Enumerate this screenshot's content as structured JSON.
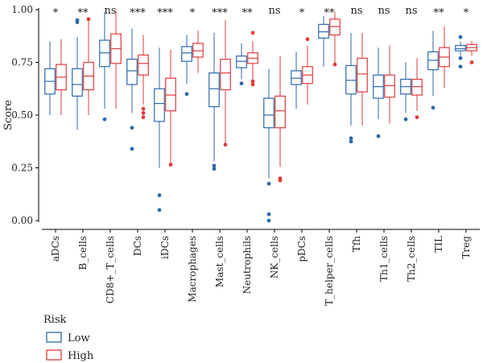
{
  "chart_data": {
    "type": "boxplot",
    "title": "",
    "xlabel": "",
    "ylabel": "Score",
    "ylim": [
      0,
      1
    ],
    "yticks": [
      "0.00",
      "0.25",
      "0.50",
      "0.75",
      "1.00"
    ],
    "ytick_values": [
      0,
      0.25,
      0.5,
      0.75,
      1.0
    ],
    "grid": false,
    "legend": {
      "title": "Risk",
      "position": "bottom-left",
      "entries": [
        {
          "name": "Low",
          "color": "#2c6aab"
        },
        {
          "name": "High",
          "color": "#e23b3b"
        }
      ]
    },
    "categories": [
      "aDCs",
      "B_cells",
      "CD8+_T_cells",
      "DCs",
      "iDCs",
      "Macrophages",
      "Mast_cells",
      "Neutrophils",
      "NK_cells",
      "pDCs",
      "T_helper_cells",
      "Tfh",
      "Th1_cells",
      "Th2_cells",
      "TIL",
      "Treg"
    ],
    "significance": [
      "*",
      "**",
      "ns",
      "***",
      "***",
      "*",
      "***",
      "**",
      "ns",
      "*",
      "**",
      "ns",
      "ns",
      "ns",
      "**",
      "*"
    ],
    "series": [
      {
        "name": "Low",
        "color": "#2c6aab",
        "boxes": [
          {
            "whislo": 0.5,
            "q1": 0.6,
            "med": 0.66,
            "q3": 0.72,
            "whishi": 0.85,
            "fliers": []
          },
          {
            "whislo": 0.43,
            "q1": 0.59,
            "med": 0.645,
            "q3": 0.72,
            "whishi": 0.87,
            "fliers": [
              0.94,
              0.95
            ]
          },
          {
            "whislo": 0.53,
            "q1": 0.73,
            "med": 0.795,
            "q3": 0.855,
            "whishi": 0.99,
            "fliers": [
              0.48
            ]
          },
          {
            "whislo": 0.51,
            "q1": 0.645,
            "med": 0.71,
            "q3": 0.765,
            "whishi": 0.91,
            "fliers": [
              0.44,
              0.34
            ]
          },
          {
            "whislo": 0.25,
            "q1": 0.47,
            "med": 0.555,
            "q3": 0.625,
            "whishi": 0.82,
            "fliers": [
              0.12,
              0.05
            ]
          },
          {
            "whislo": 0.65,
            "q1": 0.755,
            "med": 0.795,
            "q3": 0.825,
            "whishi": 0.88,
            "fliers": [
              0.6
            ]
          },
          {
            "whislo": 0.28,
            "q1": 0.54,
            "med": 0.625,
            "q3": 0.7,
            "whishi": 0.89,
            "fliers": [
              0.26,
              0.245
            ]
          },
          {
            "whislo": 0.67,
            "q1": 0.725,
            "med": 0.755,
            "q3": 0.78,
            "whishi": 0.84,
            "fliers": [
              0.65
            ]
          },
          {
            "whislo": 0.2,
            "q1": 0.44,
            "med": 0.5,
            "q3": 0.58,
            "whishi": 0.72,
            "fliers": [
              0.175,
              0.03,
              0.0
            ]
          },
          {
            "whislo": 0.53,
            "q1": 0.645,
            "med": 0.675,
            "q3": 0.71,
            "whishi": 0.8,
            "fliers": []
          },
          {
            "whislo": 0.73,
            "q1": 0.865,
            "med": 0.895,
            "q3": 0.93,
            "whishi": 0.97,
            "fliers": []
          },
          {
            "whislo": 0.45,
            "q1": 0.6,
            "med": 0.665,
            "q3": 0.735,
            "whishi": 0.89,
            "fliers": [
              0.39,
              0.375
            ]
          },
          {
            "whislo": 0.48,
            "q1": 0.58,
            "med": 0.635,
            "q3": 0.69,
            "whishi": 0.82,
            "fliers": [
              0.4
            ]
          },
          {
            "whislo": 0.51,
            "q1": 0.6,
            "med": 0.635,
            "q3": 0.67,
            "whishi": 0.75,
            "fliers": [
              0.48
            ]
          },
          {
            "whislo": 0.59,
            "q1": 0.715,
            "med": 0.76,
            "q3": 0.8,
            "whishi": 0.9,
            "fliers": [
              0.535
            ]
          },
          {
            "whislo": 0.78,
            "q1": 0.805,
            "med": 0.815,
            "q3": 0.83,
            "whishi": 0.85,
            "fliers": [
              0.87,
              0.77,
              0.73
            ]
          }
        ]
      },
      {
        "name": "High",
        "color": "#e23b3b",
        "boxes": [
          {
            "whislo": 0.5,
            "q1": 0.62,
            "med": 0.68,
            "q3": 0.74,
            "whishi": 0.86,
            "fliers": []
          },
          {
            "whislo": 0.5,
            "q1": 0.62,
            "med": 0.685,
            "q3": 0.75,
            "whishi": 0.95,
            "fliers": [
              0.955
            ]
          },
          {
            "whislo": 0.53,
            "q1": 0.745,
            "med": 0.815,
            "q3": 0.885,
            "whishi": 0.99,
            "fliers": []
          },
          {
            "whislo": 0.55,
            "q1": 0.69,
            "med": 0.745,
            "q3": 0.785,
            "whishi": 0.88,
            "fliers": [
              0.53,
              0.51,
              0.49
            ]
          },
          {
            "whislo": 0.27,
            "q1": 0.52,
            "med": 0.595,
            "q3": 0.675,
            "whishi": 0.81,
            "fliers": [
              0.265
            ]
          },
          {
            "whislo": 0.7,
            "q1": 0.775,
            "med": 0.805,
            "q3": 0.84,
            "whishi": 0.9,
            "fliers": []
          },
          {
            "whislo": 0.37,
            "q1": 0.62,
            "med": 0.7,
            "q3": 0.765,
            "whishi": 0.95,
            "fliers": [
              0.36
            ]
          },
          {
            "whislo": 0.67,
            "q1": 0.745,
            "med": 0.77,
            "q3": 0.795,
            "whishi": 0.85,
            "fliers": [
              0.89,
              0.66,
              0.645
            ]
          },
          {
            "whislo": 0.255,
            "q1": 0.44,
            "med": 0.52,
            "q3": 0.59,
            "whishi": 0.78,
            "fliers": [
              0.2,
              0.19
            ]
          },
          {
            "whislo": 0.55,
            "q1": 0.65,
            "med": 0.69,
            "q3": 0.73,
            "whishi": 0.83,
            "fliers": [
              0.86
            ]
          },
          {
            "whislo": 0.74,
            "q1": 0.88,
            "med": 0.92,
            "q3": 0.955,
            "whishi": 0.99,
            "fliers": [
              0.74
            ]
          },
          {
            "whislo": 0.45,
            "q1": 0.61,
            "med": 0.695,
            "q3": 0.77,
            "whishi": 0.89,
            "fliers": []
          },
          {
            "whislo": 0.46,
            "q1": 0.585,
            "med": 0.64,
            "q3": 0.69,
            "whishi": 0.83,
            "fliers": []
          },
          {
            "whislo": 0.52,
            "q1": 0.595,
            "med": 0.635,
            "q3": 0.67,
            "whishi": 0.77,
            "fliers": [
              0.49
            ]
          },
          {
            "whislo": 0.63,
            "q1": 0.73,
            "med": 0.775,
            "q3": 0.82,
            "whishi": 0.92,
            "fliers": []
          },
          {
            "whislo": 0.78,
            "q1": 0.805,
            "med": 0.82,
            "q3": 0.835,
            "whishi": 0.85,
            "fliers": [
              0.75
            ]
          }
        ]
      }
    ]
  }
}
